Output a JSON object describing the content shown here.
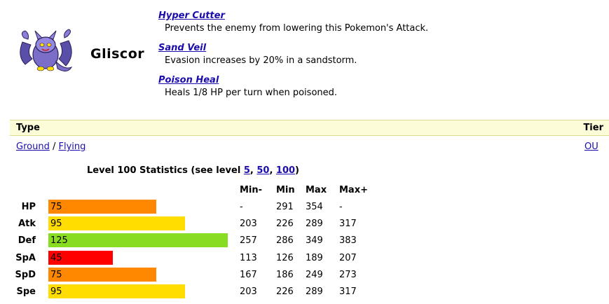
{
  "pokemon": {
    "name": "Gliscor",
    "sprite_icon": "gliscor-sprite-icon"
  },
  "abilities": [
    {
      "name": "Hyper Cutter",
      "description": "Prevents the enemy from lowering this Pokemon's Attack."
    },
    {
      "name": "Sand Veil",
      "description": "Evasion increases by 20% in a sandstorm."
    },
    {
      "name": "Poison Heal",
      "description": "Heals 1/8 HP per turn when poisoned."
    }
  ],
  "type_section": {
    "header_type": "Type",
    "header_tier": "Tier",
    "types": [
      "Ground",
      "Flying"
    ],
    "separator": "/",
    "tier": "OU"
  },
  "stats_section": {
    "title_prefix": "Level 100 Statistics (see level ",
    "level_links": [
      "5",
      "50",
      "100"
    ],
    "sep": ", ",
    "title_suffix": ")",
    "columns": [
      "Min-",
      "Min",
      "Max",
      "Max+"
    ],
    "max_base": 255,
    "rows": [
      {
        "label": "HP",
        "base": "75",
        "color": "#ff8800",
        "min_minus": "-",
        "min": "291",
        "max": "354",
        "max_plus": "-"
      },
      {
        "label": "Atk",
        "base": "95",
        "color": "#ffdd00",
        "min_minus": "203",
        "min": "226",
        "max": "289",
        "max_plus": "317"
      },
      {
        "label": "Def",
        "base": "125",
        "color": "#88dd22",
        "min_minus": "257",
        "min": "286",
        "max": "349",
        "max_plus": "383"
      },
      {
        "label": "SpA",
        "base": "45",
        "color": "#ff0000",
        "min_minus": "113",
        "min": "126",
        "max": "189",
        "max_plus": "207"
      },
      {
        "label": "SpD",
        "base": "75",
        "color": "#ff8800",
        "min_minus": "167",
        "min": "186",
        "max": "249",
        "max_plus": "273"
      },
      {
        "label": "Spe",
        "base": "95",
        "color": "#ffdd00",
        "min_minus": "203",
        "min": "226",
        "max": "289",
        "max_plus": "317"
      }
    ]
  }
}
